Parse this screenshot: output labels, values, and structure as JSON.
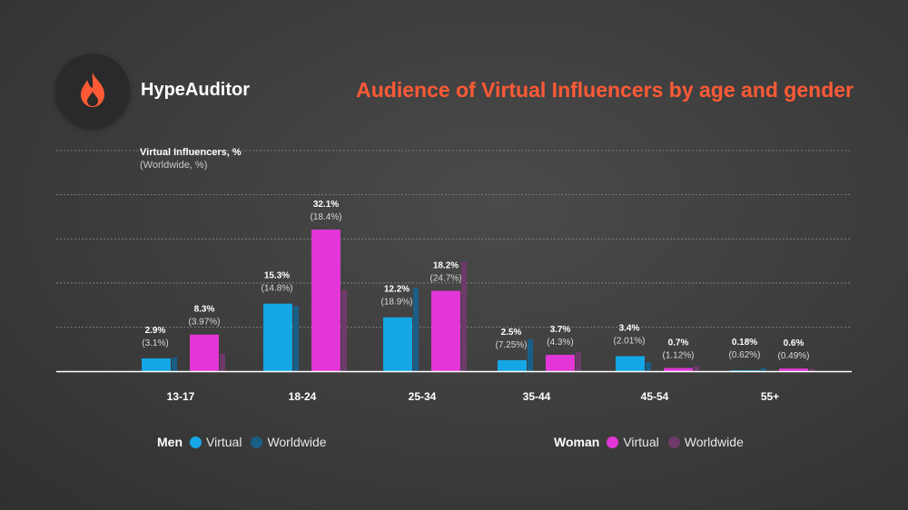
{
  "brand": {
    "name": "HypeAuditor",
    "logo_icon": "flame-icon"
  },
  "title": "Audience of Virtual Influencers by age and gender",
  "colors": {
    "men_virtual": "#15a6e6",
    "men_worldwide": "#1a5f86",
    "women_virtual": "#e236d6",
    "women_worldwide": "#6e3a6a",
    "accent": "#ff5a36"
  },
  "legend": {
    "men": {
      "label": "Men",
      "virtual": "Virtual",
      "worldwide": "Worldwide"
    },
    "women": {
      "label": "Woman",
      "virtual": "Virtual",
      "worldwide": "Worldwide"
    }
  },
  "chart_data": {
    "type": "bar",
    "ylabel": "Virtual Influencers, %",
    "ylabel_sub": "(Worldwide, %)",
    "ylim": [
      0,
      50
    ],
    "grid": true,
    "categories": [
      "13-17",
      "18-24",
      "25-34",
      "35-44",
      "45-54",
      "55+"
    ],
    "series": [
      {
        "name": "Men Virtual",
        "values": [
          2.9,
          15.3,
          12.2,
          2.5,
          3.4,
          0.18
        ],
        "labels": [
          "2.9%",
          "15.3%",
          "12.2%",
          "2.5%",
          "3.4%",
          "0.18%"
        ]
      },
      {
        "name": "Men Worldwide",
        "values": [
          3.1,
          14.8,
          18.9,
          7.25,
          2.01,
          0.62
        ],
        "labels": [
          "(3.1%)",
          "(14.8%)",
          "(18.9%)",
          "(7.25%)",
          "(2.01%)",
          "(0.62%)"
        ]
      },
      {
        "name": "Woman Virtual",
        "values": [
          8.3,
          32.1,
          18.2,
          3.7,
          0.7,
          0.6
        ],
        "labels": [
          "8.3%",
          "32.1%",
          "18.2%",
          "3.7%",
          "0.7%",
          "0.6%"
        ]
      },
      {
        "name": "Woman Worldwide",
        "values": [
          3.97,
          18.4,
          24.7,
          4.3,
          1.12,
          0.49
        ],
        "labels": [
          "(3.97%)",
          "(18.4%)",
          "(24.7%)",
          "(4.3%)",
          "(1.12%)",
          "(0.49%)"
        ]
      }
    ]
  }
}
